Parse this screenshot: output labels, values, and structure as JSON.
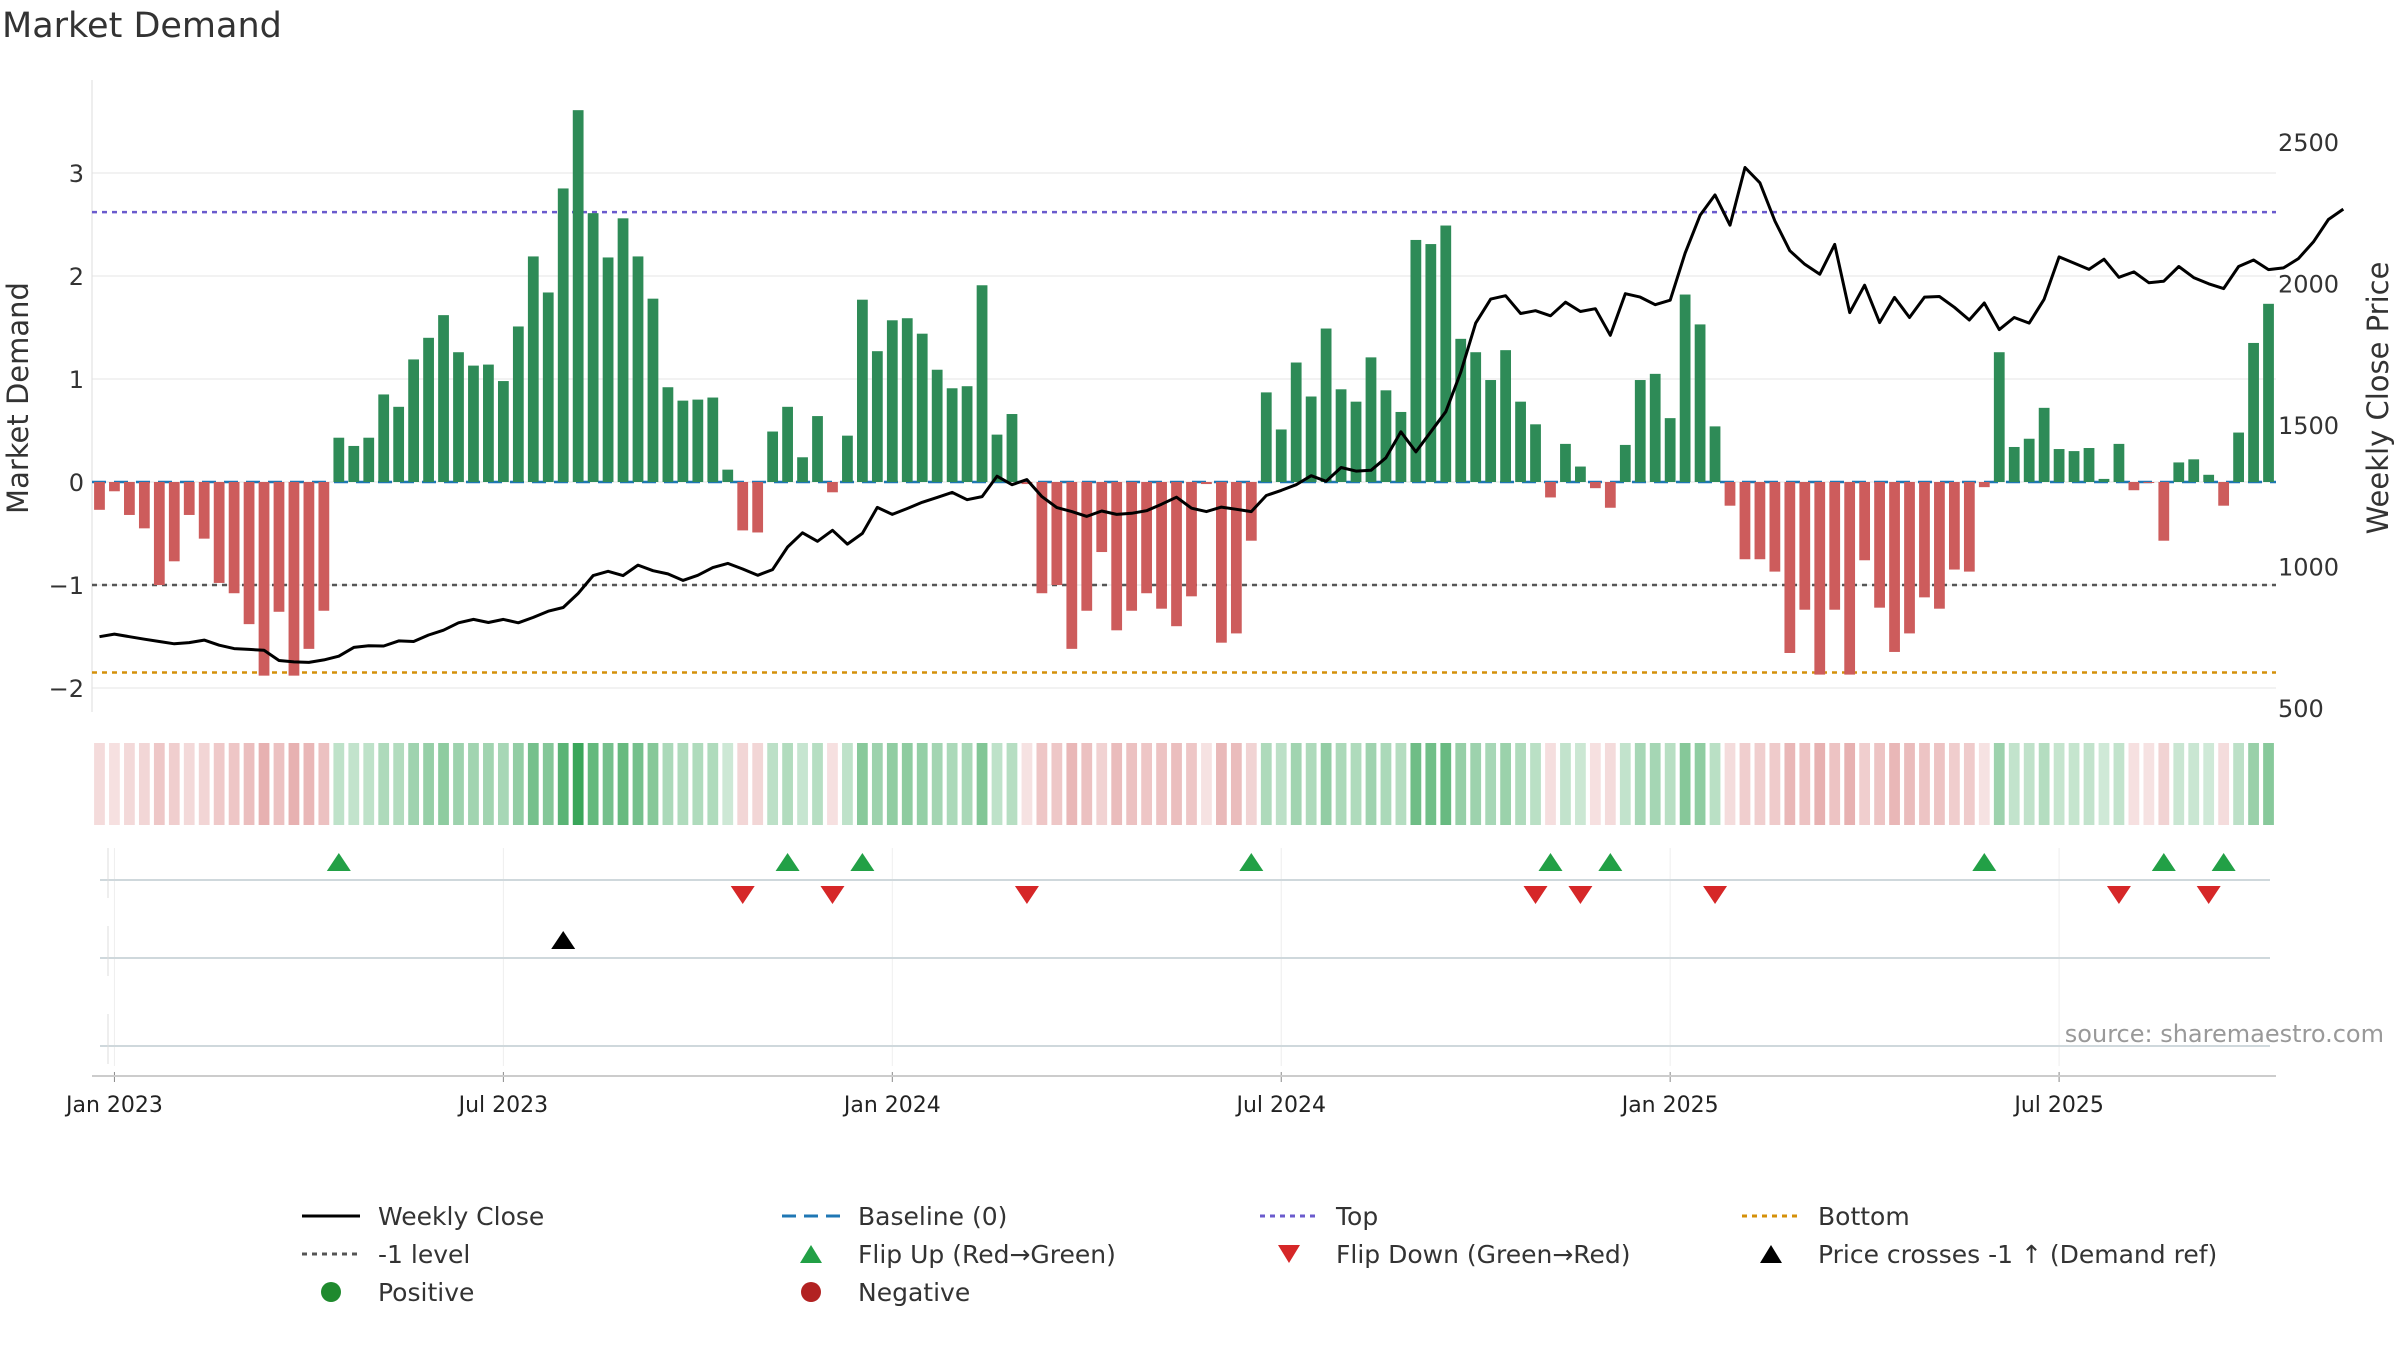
{
  "chart_data": {
    "type": "bar",
    "title": "Market Demand",
    "ylabel_left": "Market Demand",
    "ylabel_right": "Weekly Close Price",
    "ylim_left": [
      -2.25,
      3.75
    ],
    "ylim_right": [
      500,
      2600
    ],
    "yticks_left": [
      {
        "value": -2,
        "label": "−2"
      },
      {
        "value": -1,
        "label": "−1"
      },
      {
        "value": 0,
        "label": "0"
      },
      {
        "value": 1,
        "label": "1"
      },
      {
        "value": 2,
        "label": "2"
      },
      {
        "value": 3,
        "label": "3"
      }
    ],
    "yticks_right": [
      {
        "value": 500,
        "label": "500"
      },
      {
        "value": 1000,
        "label": "1000"
      },
      {
        "value": 1500,
        "label": "1500"
      },
      {
        "value": 2000,
        "label": "2000"
      },
      {
        "value": 2500,
        "label": "2500"
      }
    ],
    "x_ticks": [
      {
        "index": 1,
        "label": "Jan 2023"
      },
      {
        "index": 27,
        "label": "Jul 2023"
      },
      {
        "index": 53,
        "label": "Jan 2024"
      },
      {
        "index": 79,
        "label": "Jul 2024"
      },
      {
        "index": 105,
        "label": "Jan 2025"
      },
      {
        "index": 131,
        "label": "Jul 2025"
      }
    ],
    "reference_lines": {
      "top": 2.62,
      "bottom": -1.85,
      "minus_one": -1,
      "baseline": 0
    },
    "demand": [
      -0.27,
      -0.09,
      -0.32,
      -0.45,
      -1.0,
      -0.77,
      -0.32,
      -0.55,
      -0.98,
      -1.08,
      -1.38,
      -1.88,
      -1.26,
      -1.88,
      -1.62,
      -1.25,
      0.43,
      0.35,
      0.43,
      0.85,
      0.73,
      1.19,
      1.4,
      1.62,
      1.26,
      1.13,
      1.14,
      0.98,
      1.51,
      2.19,
      1.84,
      2.85,
      3.61,
      2.61,
      2.18,
      2.56,
      2.19,
      1.78,
      0.92,
      0.79,
      0.8,
      0.82,
      0.12,
      -0.47,
      -0.49,
      0.49,
      0.73,
      0.24,
      0.64,
      -0.1,
      0.45,
      1.77,
      1.27,
      1.57,
      1.59,
      1.44,
      1.09,
      0.91,
      0.93,
      1.91,
      0.46,
      0.66,
      -0.02,
      -1.08,
      -1.0,
      -1.62,
      -1.25,
      -0.68,
      -1.44,
      -1.25,
      -1.08,
      -1.23,
      -1.4,
      -1.11,
      -0.02,
      -1.56,
      -1.47,
      -0.57,
      0.87,
      0.51,
      1.16,
      0.83,
      1.49,
      0.9,
      0.78,
      1.21,
      0.89,
      0.68,
      2.35,
      2.31,
      2.49,
      1.39,
      1.26,
      0.99,
      1.28,
      0.78,
      0.56,
      -0.15,
      0.37,
      0.15,
      -0.06,
      -0.25,
      0.36,
      0.99,
      1.05,
      0.62,
      1.82,
      1.53,
      0.54,
      -0.23,
      -0.75,
      -0.75,
      -0.87,
      -1.66,
      -1.24,
      -1.87,
      -1.24,
      -1.87,
      -0.76,
      -1.22,
      -1.65,
      -1.47,
      -1.12,
      -1.23,
      -0.85,
      -0.87,
      -0.05,
      1.26,
      0.34,
      0.42,
      0.72,
      0.32,
      0.3,
      0.33,
      0.03,
      0.37,
      -0.08,
      -0.01,
      -0.57,
      0.19,
      0.22,
      0.07,
      -0.23,
      0.48,
      1.35,
      1.73
    ],
    "weekly_close": [
      752,
      761,
      752,
      743,
      735,
      727,
      731,
      740,
      722,
      710,
      707,
      704,
      668,
      663,
      661,
      670,
      683,
      714,
      720,
      719,
      737,
      735,
      758,
      775,
      801,
      813,
      802,
      813,
      801,
      820,
      842,
      855,
      905,
      968,
      983,
      968,
      1005,
      985,
      974,
      951,
      969,
      996,
      1011,
      991,
      969,
      989,
      1069,
      1119,
      1089,
      1128,
      1079,
      1117,
      1209,
      1184,
      1205,
      1227,
      1244,
      1262,
      1236,
      1247,
      1319,
      1289,
      1307,
      1247,
      1208,
      1194,
      1177,
      1196,
      1184,
      1188,
      1197,
      1220,
      1245,
      1206,
      1194,
      1210,
      1202,
      1194,
      1251,
      1269,
      1289,
      1321,
      1301,
      1350,
      1337,
      1340,
      1384,
      1476,
      1405,
      1476,
      1547,
      1686,
      1860,
      1945,
      1957,
      1894,
      1904,
      1886,
      1934,
      1901,
      1911,
      1817,
      1964,
      1952,
      1925,
      1941,
      2107,
      2241,
      2313,
      2206,
      2410,
      2356,
      2221,
      2116,
      2068,
      2033,
      2138,
      1897,
      1994,
      1862,
      1951,
      1880,
      1952,
      1954,
      1916,
      1871,
      1931,
      1837,
      1880,
      1860,
      1944,
      2094,
      2072,
      2050,
      2086,
      2022,
      2041,
      2003,
      2008,
      2060,
      2021,
      1999,
      1982,
      2060,
      2083,
      2049,
      2055,
      2088,
      2147,
      2226,
      2263
    ]
  },
  "markers": {
    "flip_up": [
      16,
      46,
      51,
      77,
      97,
      101,
      126,
      138,
      142
    ],
    "flip_down": [
      43,
      49,
      62,
      96,
      99,
      108,
      135,
      141
    ],
    "price_cross": [
      31
    ]
  },
  "source_text": "source: sharemaestro.com",
  "legend": [
    {
      "key": "weekly-close",
      "label": "Weekly Close"
    },
    {
      "key": "baseline",
      "label": "Baseline (0)"
    },
    {
      "key": "top",
      "label": "Top"
    },
    {
      "key": "bottom",
      "label": "Bottom"
    },
    {
      "key": "minus-one",
      "label": "-1 level"
    },
    {
      "key": "flip-up",
      "label": "Flip Up (Red→Green)"
    },
    {
      "key": "flip-down",
      "label": "Flip Down (Green→Red)"
    },
    {
      "key": "price-cross",
      "label": "Price crosses -1 ↑ (Demand ref)"
    },
    {
      "key": "positive",
      "label": "Positive"
    },
    {
      "key": "negative",
      "label": "Negative"
    }
  ],
  "colors": {
    "positive_bar": "#2e8b57",
    "negative_bar": "#cd5c5c",
    "line": "#000000",
    "baseline": "#1f77b4",
    "top": "#6a5acd",
    "bottom": "#d4900a",
    "minus_one": "#555555",
    "flip_up": "#22a046",
    "flip_down": "#d62728",
    "positive_dot": "#1f8a2e",
    "negative_dot": "#b22222"
  }
}
